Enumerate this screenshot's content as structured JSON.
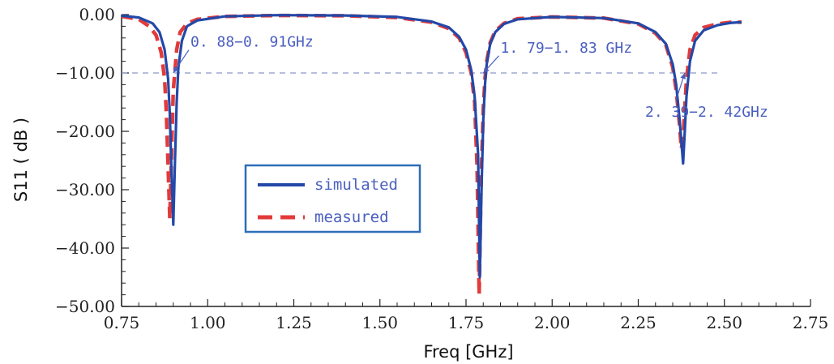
{
  "chart_data": {
    "type": "line",
    "title": "",
    "xlabel": "Freq [GHz]",
    "ylabel": "S11 ( dB )",
    "xlim": [
      0.75,
      2.75
    ],
    "ylim": [
      -50,
      0
    ],
    "x_ticks": [
      0.75,
      1.0,
      1.25,
      1.5,
      1.75,
      2.0,
      2.25,
      2.5,
      2.75
    ],
    "x_tick_labels": [
      "0.75",
      "1.00",
      "1.25",
      "1.50",
      "1.75",
      "2.00",
      "2.25",
      "2.50",
      "2.75"
    ],
    "y_ticks": [
      0,
      -10,
      -20,
      -30,
      -40,
      -50
    ],
    "y_tick_labels": [
      "0.00",
      "−10.00",
      "−20.00",
      "−30.00",
      "−40.00",
      "−50.00"
    ],
    "grid": false,
    "legend": "center-left",
    "reference_line": {
      "y": -10,
      "style": "dashed",
      "color": "#8a96c8"
    },
    "series": [
      {
        "name": "simulated",
        "color": "#2348a8",
        "style": "solid",
        "x": [
          0.75,
          0.8,
          0.84,
          0.86,
          0.875,
          0.885,
          0.89,
          0.895,
          0.9,
          0.905,
          0.91,
          0.915,
          0.925,
          0.94,
          0.97,
          1.05,
          1.2,
          1.4,
          1.55,
          1.65,
          1.7,
          1.73,
          1.75,
          1.765,
          1.775,
          1.785,
          1.79,
          1.795,
          1.8,
          1.805,
          1.81,
          1.82,
          1.835,
          1.86,
          1.9,
          2.0,
          2.15,
          2.25,
          2.3,
          2.33,
          2.35,
          2.36,
          2.37,
          2.38,
          2.385,
          2.39,
          2.4,
          2.415,
          2.44,
          2.48,
          2.52,
          2.55
        ],
        "y": [
          -0.2,
          -0.5,
          -1.5,
          -3,
          -6,
          -11,
          -17,
          -27,
          -36,
          -25,
          -15,
          -9,
          -4.5,
          -2,
          -1,
          -0.3,
          -0.1,
          -0.15,
          -0.4,
          -1.2,
          -2.2,
          -3.8,
          -6,
          -9.5,
          -14,
          -24,
          -45,
          -30,
          -18,
          -12,
          -8.5,
          -5,
          -3,
          -1.6,
          -0.8,
          -0.4,
          -0.6,
          -1.5,
          -3,
          -5,
          -8.5,
          -12,
          -18,
          -25.5,
          -20,
          -14,
          -8,
          -4.5,
          -2.7,
          -1.8,
          -1.4,
          -1.3
        ]
      },
      {
        "name": "measured",
        "color": "#e23a3a",
        "style": "dashed",
        "x": [
          0.75,
          0.8,
          0.83,
          0.85,
          0.865,
          0.875,
          0.88,
          0.885,
          0.89,
          0.895,
          0.9,
          0.91,
          0.92,
          0.94,
          0.97,
          1.05,
          1.2,
          1.4,
          1.55,
          1.65,
          1.7,
          1.73,
          1.75,
          1.765,
          1.775,
          1.782,
          1.788,
          1.794,
          1.8,
          1.805,
          1.81,
          1.82,
          1.835,
          1.86,
          1.9,
          2.0,
          2.15,
          2.25,
          2.3,
          2.33,
          2.35,
          2.36,
          2.37,
          2.375,
          2.38,
          2.385,
          2.39,
          2.4,
          2.415,
          2.44,
          2.48,
          2.52,
          2.55
        ],
        "y": [
          -0.3,
          -0.8,
          -2,
          -3.5,
          -6.5,
          -11,
          -17,
          -26,
          -35,
          -24,
          -13,
          -6,
          -3,
          -1.5,
          -0.8,
          -0.3,
          -0.15,
          -0.2,
          -0.5,
          -1.3,
          -2.4,
          -4,
          -6.5,
          -10,
          -15,
          -26,
          -48,
          -28,
          -16,
          -11,
          -8,
          -4.8,
          -2.8,
          -1.5,
          -0.7,
          -0.4,
          -0.6,
          -1.6,
          -3.2,
          -5.2,
          -9,
          -13,
          -19,
          -23,
          -21,
          -16,
          -11,
          -6,
          -3.5,
          -2.2,
          -1.6,
          -1.3,
          -1.3
        ]
      }
    ],
    "annotations": [
      {
        "text": "0. 88−0. 91GHz",
        "x": 0.95,
        "y": -5.5,
        "arrow_to": [
          0.9,
          -10
        ]
      },
      {
        "text": "1. 79−1. 83 GHz",
        "x": 1.85,
        "y": -6.5,
        "arrow_to": [
          1.8,
          -10
        ]
      },
      {
        "text": "2. 39−2. 42GHz",
        "x": 2.27,
        "y": -17.5,
        "arrow_to": [
          2.385,
          -10
        ]
      }
    ]
  }
}
